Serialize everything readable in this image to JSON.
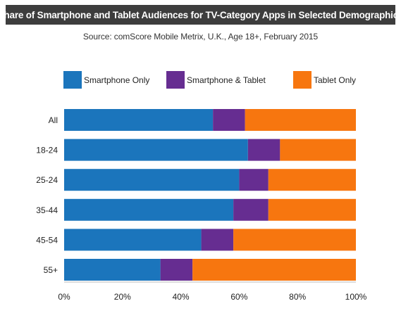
{
  "title": "Share of Smartphone and Tablet Audiences for TV-Category Apps in Selected Demographics",
  "subtitle": "Source: comScore Mobile Metrix, U.K., Age 18+, February 2015",
  "colors": {
    "title_bar": "#3d3d3d",
    "smartphone_only": "#1b75bc",
    "smartphone_tablet": "#662d91",
    "tablet_only": "#f7760f"
  },
  "chart_data": {
    "type": "bar",
    "orientation": "horizontal",
    "stacked": true,
    "categories": [
      "All",
      "18-24",
      "25-24",
      "35-44",
      "45-54",
      "55+"
    ],
    "series": [
      {
        "name": "Smartphone Only",
        "color": "#1b75bc",
        "values": [
          51,
          63,
          60,
          58,
          47,
          33
        ]
      },
      {
        "name": "Smartphone & Tablet",
        "color": "#662d91",
        "values": [
          11,
          11,
          10,
          12,
          11,
          11
        ]
      },
      {
        "name": "Tablet Only",
        "color": "#f7760f",
        "values": [
          38,
          26,
          30,
          30,
          42,
          56
        ]
      }
    ],
    "x_ticks": [
      "0%",
      "20%",
      "40%",
      "60%",
      "80%",
      "100%"
    ],
    "xlim": [
      0,
      100
    ],
    "legend_position": "top",
    "grid": false
  }
}
